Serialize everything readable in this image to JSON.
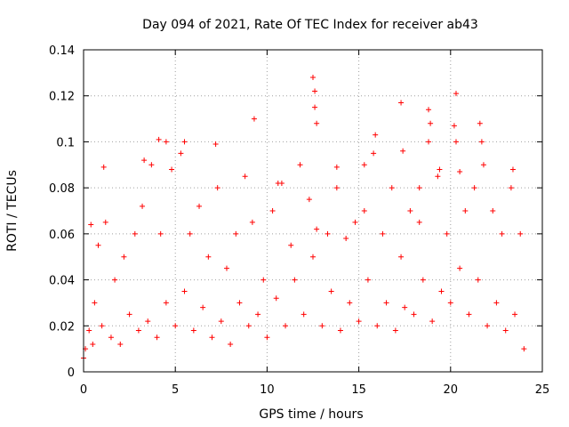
{
  "chart_data": {
    "type": "scatter",
    "title": "Day 094 of 2021, Rate Of TEC Index for receiver ab43",
    "xlabel": "GPS time / hours",
    "ylabel": "ROTI / TECUs",
    "xlim": [
      0,
      25
    ],
    "ylim": [
      0,
      0.14
    ],
    "xticks": [
      0,
      5,
      10,
      15,
      20,
      25
    ],
    "xtick_labels": [
      "0",
      "5",
      "10",
      "15",
      "20",
      "25"
    ],
    "yticks": [
      0,
      0.02,
      0.04,
      0.06,
      0.08,
      0.1,
      0.12,
      0.14
    ],
    "ytick_labels": [
      "0",
      "0.02",
      "0.04",
      "0.06",
      "0.08",
      "0.1",
      "0.12",
      "0.14"
    ],
    "grid": true,
    "legend": "none",
    "marker": "plus",
    "color": "#ff0000",
    "series": [
      {
        "x": [
          0.0,
          0.1,
          0.3,
          0.5,
          0.6,
          0.8,
          1.0,
          1.2,
          1.5,
          1.7,
          2.0,
          2.2,
          2.5,
          2.8,
          3.0,
          3.2,
          3.5,
          3.7,
          4.0,
          4.2,
          4.5,
          4.8,
          5.0,
          5.3,
          5.5,
          5.8,
          6.0,
          6.3,
          6.5,
          6.8,
          7.0,
          7.3,
          7.5,
          7.8,
          8.0,
          8.3,
          8.5,
          8.8,
          9.0,
          9.2,
          9.5,
          9.8,
          10.0,
          10.3,
          10.5,
          10.8,
          11.0,
          11.3,
          11.5,
          11.8,
          12.0,
          12.3,
          12.5,
          12.7,
          13.0,
          13.3,
          13.5,
          13.8,
          14.0,
          14.3,
          14.5,
          14.8,
          15.0,
          15.3,
          15.5,
          15.8,
          16.0,
          16.3,
          16.5,
          16.8,
          17.0,
          17.3,
          17.5,
          17.8,
          18.0,
          18.3,
          18.5,
          18.8,
          19.0,
          19.3,
          19.5,
          19.8,
          20.0,
          20.3,
          20.5,
          20.8,
          21.0,
          21.3,
          21.5,
          21.8,
          22.0,
          22.3,
          22.5,
          22.8,
          23.0,
          23.3,
          23.5,
          23.8,
          24.0,
          0.4,
          1.1,
          3.3,
          4.1,
          4.5,
          5.5,
          7.2,
          9.3,
          10.6,
          12.5,
          12.6,
          12.6,
          12.7,
          13.8,
          15.3,
          15.9,
          17.3,
          17.4,
          18.3,
          18.8,
          18.9,
          19.4,
          20.2,
          20.3,
          20.5,
          21.6,
          21.7,
          23.4
        ],
        "y": [
          0.006,
          0.01,
          0.018,
          0.012,
          0.03,
          0.055,
          0.02,
          0.065,
          0.015,
          0.04,
          0.012,
          0.05,
          0.025,
          0.06,
          0.018,
          0.072,
          0.022,
          0.09,
          0.015,
          0.06,
          0.03,
          0.088,
          0.02,
          0.095,
          0.035,
          0.06,
          0.018,
          0.072,
          0.028,
          0.05,
          0.015,
          0.08,
          0.022,
          0.045,
          0.012,
          0.06,
          0.03,
          0.085,
          0.02,
          0.065,
          0.025,
          0.04,
          0.015,
          0.07,
          0.032,
          0.082,
          0.02,
          0.055,
          0.04,
          0.09,
          0.025,
          0.075,
          0.05,
          0.062,
          0.02,
          0.06,
          0.035,
          0.08,
          0.018,
          0.058,
          0.03,
          0.065,
          0.022,
          0.07,
          0.04,
          0.095,
          0.02,
          0.06,
          0.03,
          0.08,
          0.018,
          0.05,
          0.028,
          0.07,
          0.025,
          0.065,
          0.04,
          0.1,
          0.022,
          0.085,
          0.035,
          0.06,
          0.03,
          0.1,
          0.045,
          0.07,
          0.025,
          0.08,
          0.04,
          0.09,
          0.02,
          0.07,
          0.03,
          0.06,
          0.018,
          0.08,
          0.025,
          0.06,
          0.01,
          0.064,
          0.089,
          0.092,
          0.101,
          0.1,
          0.1,
          0.099,
          0.11,
          0.082,
          0.128,
          0.122,
          0.115,
          0.108,
          0.089,
          0.09,
          0.103,
          0.117,
          0.096,
          0.08,
          0.114,
          0.108,
          0.088,
          0.107,
          0.121,
          0.087,
          0.108,
          0.1,
          0.088
        ]
      }
    ]
  }
}
